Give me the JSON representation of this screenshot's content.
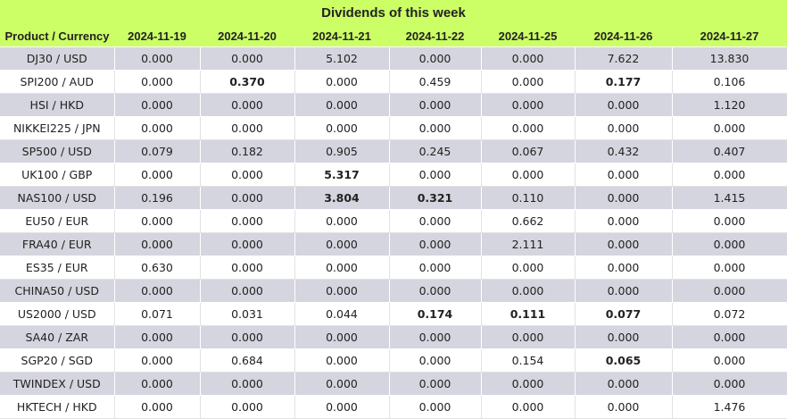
{
  "title": "Dividends of this week",
  "columns": [
    "Product / Currency",
    "2024-11-19",
    "2024-11-20",
    "2024-11-21",
    "2024-11-22",
    "2024-11-25",
    "2024-11-26",
    "2024-11-27"
  ],
  "rows": [
    {
      "product": "DJ30 / USD",
      "values": [
        "0.000",
        "0.000",
        "5.102",
        "0.000",
        "0.000",
        "7.622",
        "13.830"
      ],
      "bold": [
        false,
        false,
        false,
        false,
        false,
        false,
        false
      ]
    },
    {
      "product": "SPI200 / AUD",
      "values": [
        "0.000",
        "0.370",
        "0.000",
        "0.459",
        "0.000",
        "0.177",
        "0.106"
      ],
      "bold": [
        false,
        true,
        false,
        false,
        false,
        true,
        false
      ]
    },
    {
      "product": "HSI / HKD",
      "values": [
        "0.000",
        "0.000",
        "0.000",
        "0.000",
        "0.000",
        "0.000",
        "1.120"
      ],
      "bold": [
        false,
        false,
        false,
        false,
        false,
        false,
        false
      ]
    },
    {
      "product": "NIKKEI225 / JPN",
      "values": [
        "0.000",
        "0.000",
        "0.000",
        "0.000",
        "0.000",
        "0.000",
        "0.000"
      ],
      "bold": [
        false,
        false,
        false,
        false,
        false,
        false,
        false
      ]
    },
    {
      "product": "SP500 / USD",
      "values": [
        "0.079",
        "0.182",
        "0.905",
        "0.245",
        "0.067",
        "0.432",
        "0.407"
      ],
      "bold": [
        false,
        false,
        false,
        false,
        false,
        false,
        false
      ]
    },
    {
      "product": "UK100 / GBP",
      "values": [
        "0.000",
        "0.000",
        "5.317",
        "0.000",
        "0.000",
        "0.000",
        "0.000"
      ],
      "bold": [
        false,
        false,
        true,
        false,
        false,
        false,
        false
      ]
    },
    {
      "product": "NAS100 / USD",
      "values": [
        "0.196",
        "0.000",
        "3.804",
        "0.321",
        "0.110",
        "0.000",
        "1.415"
      ],
      "bold": [
        false,
        false,
        true,
        true,
        false,
        false,
        false
      ]
    },
    {
      "product": "EU50 / EUR",
      "values": [
        "0.000",
        "0.000",
        "0.000",
        "0.000",
        "0.662",
        "0.000",
        "0.000"
      ],
      "bold": [
        false,
        false,
        false,
        false,
        false,
        false,
        false
      ]
    },
    {
      "product": "FRA40 / EUR",
      "values": [
        "0.000",
        "0.000",
        "0.000",
        "0.000",
        "2.111",
        "0.000",
        "0.000"
      ],
      "bold": [
        false,
        false,
        false,
        false,
        false,
        false,
        false
      ]
    },
    {
      "product": "ES35 / EUR",
      "values": [
        "0.630",
        "0.000",
        "0.000",
        "0.000",
        "0.000",
        "0.000",
        "0.000"
      ],
      "bold": [
        false,
        false,
        false,
        false,
        false,
        false,
        false
      ]
    },
    {
      "product": "CHINA50 / USD",
      "values": [
        "0.000",
        "0.000",
        "0.000",
        "0.000",
        "0.000",
        "0.000",
        "0.000"
      ],
      "bold": [
        false,
        false,
        false,
        false,
        false,
        false,
        false
      ]
    },
    {
      "product": "US2000 / USD",
      "values": [
        "0.071",
        "0.031",
        "0.044",
        "0.174",
        "0.111",
        "0.077",
        "0.072"
      ],
      "bold": [
        false,
        false,
        false,
        true,
        true,
        true,
        false
      ]
    },
    {
      "product": "SA40 / ZAR",
      "values": [
        "0.000",
        "0.000",
        "0.000",
        "0.000",
        "0.000",
        "0.000",
        "0.000"
      ],
      "bold": [
        false,
        false,
        false,
        false,
        false,
        false,
        false
      ]
    },
    {
      "product": "SGP20 / SGD",
      "values": [
        "0.000",
        "0.684",
        "0.000",
        "0.000",
        "0.154",
        "0.065",
        "0.000"
      ],
      "bold": [
        false,
        false,
        false,
        false,
        false,
        true,
        false
      ]
    },
    {
      "product": "TWINDEX / USD",
      "values": [
        "0.000",
        "0.000",
        "0.000",
        "0.000",
        "0.000",
        "0.000",
        "0.000"
      ],
      "bold": [
        false,
        false,
        false,
        false,
        false,
        false,
        false
      ]
    },
    {
      "product": "HKTECH / HKD",
      "values": [
        "0.000",
        "0.000",
        "0.000",
        "0.000",
        "0.000",
        "0.000",
        "1.476"
      ],
      "bold": [
        false,
        false,
        false,
        false,
        false,
        false,
        false
      ]
    }
  ]
}
